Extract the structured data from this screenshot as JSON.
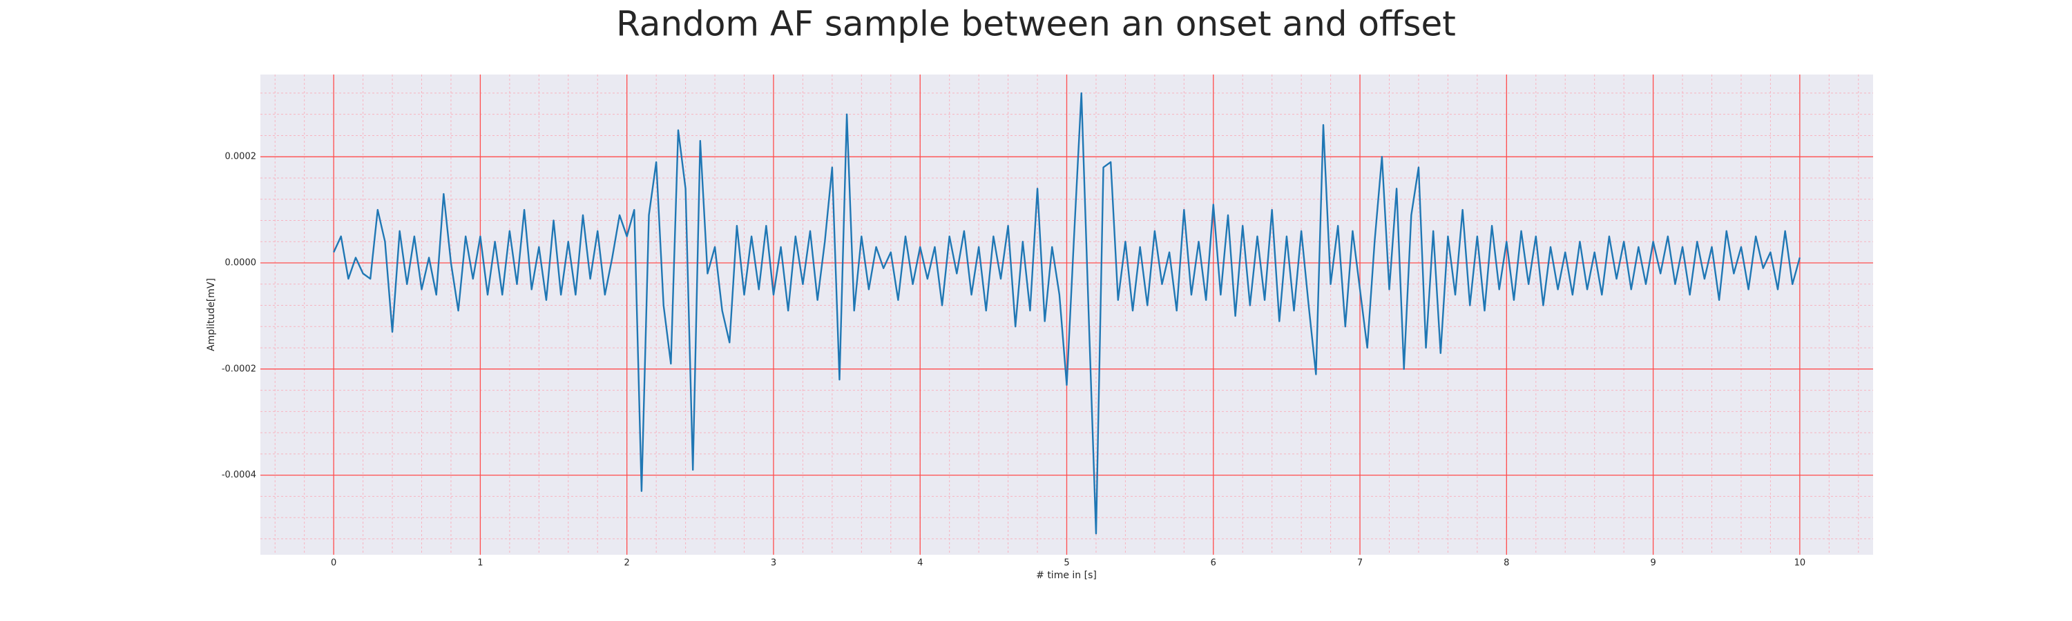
{
  "chart_data": {
    "type": "line",
    "title": "Random AF sample between an onset and offset",
    "xlabel": "# time in [s]",
    "ylabel": "Amplitude[mV]",
    "color": "#1f77b4",
    "background": "#eaeaf2",
    "grid": true,
    "grid_color": "#ff4d4d",
    "minor_grid": true,
    "minor_grid_color": "#f7b3c0",
    "xlim": [
      -0.5,
      10.5
    ],
    "ylim": [
      -0.00055,
      0.000355
    ],
    "xticks": [
      0,
      1,
      2,
      3,
      4,
      5,
      6,
      7,
      8,
      9,
      10
    ],
    "yticks": [
      {
        "value": -0.0004,
        "label": "-0.0004"
      },
      {
        "value": -0.0002,
        "label": "-0.0002"
      },
      {
        "value": 0,
        "label": "0.0000"
      },
      {
        "value": 0.0002,
        "label": "0.0002"
      }
    ],
    "x": [
      0,
      0.05,
      0.1,
      0.15,
      0.2,
      0.25,
      0.3,
      0.35,
      0.4,
      0.45,
      0.5,
      0.55,
      0.6,
      0.65,
      0.7,
      0.75,
      0.8,
      0.85,
      0.9,
      0.95,
      1,
      1.05,
      1.1,
      1.15,
      1.2,
      1.25,
      1.3,
      1.35,
      1.4,
      1.45,
      1.5,
      1.55,
      1.6,
      1.65,
      1.7,
      1.75,
      1.8,
      1.85,
      1.9,
      1.95,
      2,
      2.05,
      2.1,
      2.15,
      2.2,
      2.25,
      2.3,
      2.35,
      2.4,
      2.45,
      2.5,
      2.55,
      2.6,
      2.65,
      2.7,
      2.75,
      2.8,
      2.85,
      2.9,
      2.95,
      3,
      3.05,
      3.1,
      3.15,
      3.2,
      3.25,
      3.3,
      3.35,
      3.4,
      3.45,
      3.5,
      3.55,
      3.6,
      3.65,
      3.7,
      3.75,
      3.8,
      3.85,
      3.9,
      3.95,
      4,
      4.05,
      4.1,
      4.15,
      4.2,
      4.25,
      4.3,
      4.35,
      4.4,
      4.45,
      4.5,
      4.55,
      4.6,
      4.65,
      4.7,
      4.75,
      4.8,
      4.85,
      4.9,
      4.95,
      5,
      5.05,
      5.1,
      5.15,
      5.2,
      5.25,
      5.3,
      5.35,
      5.4,
      5.45,
      5.5,
      5.55,
      5.6,
      5.65,
      5.7,
      5.75,
      5.8,
      5.85,
      5.9,
      5.95,
      6,
      6.05,
      6.1,
      6.15,
      6.2,
      6.25,
      6.3,
      6.35,
      6.4,
      6.45,
      6.5,
      6.55,
      6.6,
      6.65,
      6.7,
      6.75,
      6.8,
      6.85,
      6.9,
      6.95,
      7,
      7.05,
      7.1,
      7.15,
      7.2,
      7.25,
      7.3,
      7.35,
      7.4,
      7.45,
      7.5,
      7.55,
      7.6,
      7.65,
      7.7,
      7.75,
      7.8,
      7.85,
      7.9,
      7.95,
      8,
      8.05,
      8.1,
      8.15,
      8.2,
      8.25,
      8.3,
      8.35,
      8.4,
      8.45,
      8.5,
      8.55,
      8.6,
      8.65,
      8.7,
      8.75,
      8.8,
      8.85,
      8.9,
      8.95,
      9,
      9.05,
      9.1,
      9.15,
      9.2,
      9.25,
      9.3,
      9.35,
      9.4,
      9.45,
      9.5,
      9.55,
      9.6,
      9.65,
      9.7,
      9.75,
      9.8,
      9.85,
      9.9,
      9.95,
      10
    ],
    "values": [
      2e-05,
      5e-05,
      -3e-05,
      1e-05,
      -2e-05,
      -3e-05,
      0.0001,
      4e-05,
      -0.00013,
      6e-05,
      -4e-05,
      5e-05,
      -5e-05,
      1e-05,
      -6e-05,
      0.00013,
      0,
      -9e-05,
      5e-05,
      -3e-05,
      5e-05,
      -6e-05,
      4e-05,
      -6e-05,
      6e-05,
      -4e-05,
      0.0001,
      -5e-05,
      3e-05,
      -7e-05,
      8e-05,
      -6e-05,
      4e-05,
      -6e-05,
      9e-05,
      -3e-05,
      6e-05,
      -6e-05,
      1e-05,
      9e-05,
      5e-05,
      0.0001,
      -0.00043,
      9e-05,
      0.00019,
      -8e-05,
      -0.00019,
      0.00025,
      0.00014,
      -0.00039,
      0.00023,
      -2e-05,
      3e-05,
      -9e-05,
      -0.00015,
      7e-05,
      -6e-05,
      5e-05,
      -5e-05,
      7e-05,
      -6e-05,
      3e-05,
      -9e-05,
      5e-05,
      -4e-05,
      6e-05,
      -7e-05,
      4e-05,
      0.00018,
      -0.00022,
      0.00028,
      -9e-05,
      5e-05,
      -5e-05,
      3e-05,
      -1e-05,
      2e-05,
      -7e-05,
      5e-05,
      -4e-05,
      3e-05,
      -3e-05,
      3e-05,
      -8e-05,
      5e-05,
      -2e-05,
      6e-05,
      -6e-05,
      3e-05,
      -9e-05,
      5e-05,
      -3e-05,
      7e-05,
      -0.00012,
      4e-05,
      -9e-05,
      0.00014,
      -0.00011,
      3e-05,
      -6e-05,
      -0.00023,
      5e-05,
      0.00032,
      -0.0001,
      -0.00051,
      0.00018,
      0.00019,
      -7e-05,
      4e-05,
      -9e-05,
      3e-05,
      -8e-05,
      6e-05,
      -4e-05,
      2e-05,
      -9e-05,
      0.0001,
      -6e-05,
      4e-05,
      -7e-05,
      0.00011,
      -6e-05,
      9e-05,
      -0.0001,
      7e-05,
      -8e-05,
      5e-05,
      -7e-05,
      0.0001,
      -0.00011,
      5e-05,
      -9e-05,
      6e-05,
      -8e-05,
      -0.00021,
      0.00026,
      -4e-05,
      7e-05,
      -0.00012,
      6e-05,
      -5e-05,
      -0.00016,
      4e-05,
      0.0002,
      -5e-05,
      0.00014,
      -0.0002,
      9e-05,
      0.00018,
      -0.00016,
      6e-05,
      -0.00017,
      5e-05,
      -6e-05,
      0.0001,
      -8e-05,
      5e-05,
      -9e-05,
      7e-05,
      -5e-05,
      4e-05,
      -7e-05,
      6e-05,
      -4e-05,
      5e-05,
      -8e-05,
      3e-05,
      -5e-05,
      2e-05,
      -6e-05,
      4e-05,
      -5e-05,
      2e-05,
      -6e-05,
      5e-05,
      -3e-05,
      4e-05,
      -5e-05,
      3e-05,
      -4e-05,
      4e-05,
      -2e-05,
      5e-05,
      -4e-05,
      3e-05,
      -6e-05,
      4e-05,
      -3e-05,
      3e-05,
      -7e-05,
      6e-05,
      -2e-05,
      3e-05,
      -5e-05,
      5e-05,
      -1e-05,
      2e-05,
      -5e-05,
      6e-05,
      -4e-05,
      1e-05
    ]
  }
}
